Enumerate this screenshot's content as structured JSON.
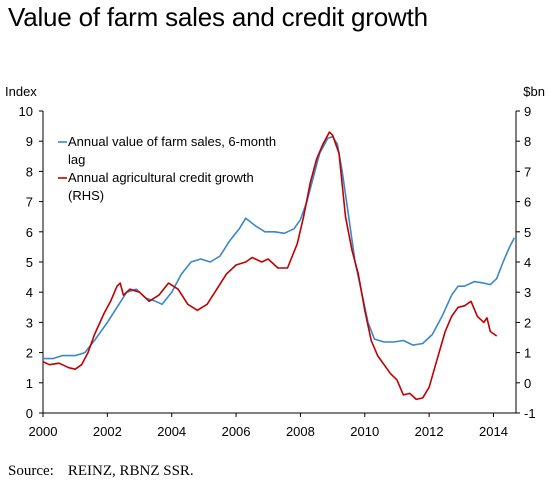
{
  "title": "Value of farm sales and credit growth",
  "source": {
    "label": "Source:",
    "text": "REINZ, RBNZ SSR."
  },
  "chart_data": {
    "type": "line",
    "title": "Value of farm sales and credit growth",
    "left_axis": {
      "unit_label": "Index",
      "ylim": [
        0,
        10
      ],
      "ticks": [
        "0",
        "1",
        "2",
        "3",
        "4",
        "5",
        "6",
        "7",
        "8",
        "9",
        "10"
      ]
    },
    "right_axis": {
      "unit_label": "$bn",
      "ylim": [
        -1,
        9
      ],
      "ticks": [
        "-1",
        "0",
        "1",
        "2",
        "3",
        "4",
        "5",
        "6",
        "7",
        "8",
        "9"
      ]
    },
    "x_axis": {
      "xlim": [
        2000,
        2014.7
      ],
      "ticks": [
        "2000",
        "2002",
        "2004",
        "2006",
        "2008",
        "2010",
        "2012",
        "2014"
      ]
    },
    "grid": false,
    "legend_placement": "top-left",
    "legend": [
      {
        "lines": [
          "Annual value of farm sales, 6-month",
          "lag"
        ],
        "color": "#3a87c9"
      },
      {
        "lines": [
          "Annual agricultural credit growth",
          "(RHS)"
        ],
        "color": "#c00000"
      }
    ],
    "series": [
      {
        "name": "Annual value of farm sales, 6-month lag",
        "axis": "left",
        "color": "#3a87c9",
        "points": [
          [
            2000.0,
            1.8
          ],
          [
            2000.3,
            1.8
          ],
          [
            2000.6,
            1.9
          ],
          [
            2001.0,
            1.9
          ],
          [
            2001.3,
            2.0
          ],
          [
            2001.6,
            2.4
          ],
          [
            2002.0,
            3.0
          ],
          [
            2002.3,
            3.5
          ],
          [
            2002.6,
            4.0
          ],
          [
            2002.9,
            4.1
          ],
          [
            2003.2,
            3.8
          ],
          [
            2003.5,
            3.7
          ],
          [
            2003.7,
            3.6
          ],
          [
            2004.0,
            4.0
          ],
          [
            2004.3,
            4.6
          ],
          [
            2004.6,
            5.0
          ],
          [
            2004.9,
            5.1
          ],
          [
            2005.2,
            5.0
          ],
          [
            2005.5,
            5.2
          ],
          [
            2005.8,
            5.7
          ],
          [
            2006.1,
            6.1
          ],
          [
            2006.3,
            6.45
          ],
          [
            2006.6,
            6.2
          ],
          [
            2006.9,
            6.0
          ],
          [
            2007.2,
            6.0
          ],
          [
            2007.5,
            5.95
          ],
          [
            2007.8,
            6.1
          ],
          [
            2008.0,
            6.4
          ],
          [
            2008.2,
            7.0
          ],
          [
            2008.4,
            7.8
          ],
          [
            2008.6,
            8.6
          ],
          [
            2008.85,
            9.1
          ],
          [
            2009.0,
            9.15
          ],
          [
            2009.15,
            8.9
          ],
          [
            2009.3,
            8.0
          ],
          [
            2009.5,
            6.5
          ],
          [
            2009.7,
            5.0
          ],
          [
            2009.9,
            4.0
          ],
          [
            2010.1,
            3.0
          ],
          [
            2010.3,
            2.45
          ],
          [
            2010.6,
            2.35
          ],
          [
            2010.9,
            2.35
          ],
          [
            2011.2,
            2.4
          ],
          [
            2011.5,
            2.25
          ],
          [
            2011.8,
            2.3
          ],
          [
            2012.1,
            2.6
          ],
          [
            2012.4,
            3.2
          ],
          [
            2012.7,
            3.9
          ],
          [
            2012.9,
            4.2
          ],
          [
            2013.1,
            4.2
          ],
          [
            2013.4,
            4.35
          ],
          [
            2013.7,
            4.3
          ],
          [
            2013.9,
            4.25
          ],
          [
            2014.1,
            4.45
          ],
          [
            2014.3,
            5.0
          ],
          [
            2014.5,
            5.5
          ],
          [
            2014.65,
            5.8
          ]
        ]
      },
      {
        "name": "Annual agricultural credit growth (RHS)",
        "axis": "right",
        "color": "#c00000",
        "points": [
          [
            2000.0,
            0.7
          ],
          [
            2000.2,
            0.6
          ],
          [
            2000.5,
            0.65
          ],
          [
            2000.8,
            0.5
          ],
          [
            2001.0,
            0.45
          ],
          [
            2001.2,
            0.6
          ],
          [
            2001.4,
            1.0
          ],
          [
            2001.6,
            1.6
          ],
          [
            2001.9,
            2.3
          ],
          [
            2002.1,
            2.7
          ],
          [
            2002.3,
            3.2
          ],
          [
            2002.4,
            3.3
          ],
          [
            2002.5,
            2.9
          ],
          [
            2002.7,
            3.1
          ],
          [
            2003.0,
            3.0
          ],
          [
            2003.3,
            2.7
          ],
          [
            2003.6,
            2.9
          ],
          [
            2003.9,
            3.3
          ],
          [
            2004.2,
            3.1
          ],
          [
            2004.5,
            2.6
          ],
          [
            2004.8,
            2.4
          ],
          [
            2005.1,
            2.6
          ],
          [
            2005.4,
            3.1
          ],
          [
            2005.7,
            3.6
          ],
          [
            2006.0,
            3.9
          ],
          [
            2006.3,
            4.0
          ],
          [
            2006.5,
            4.15
          ],
          [
            2006.8,
            4.0
          ],
          [
            2007.0,
            4.1
          ],
          [
            2007.3,
            3.8
          ],
          [
            2007.6,
            3.8
          ],
          [
            2007.9,
            4.6
          ],
          [
            2008.1,
            5.5
          ],
          [
            2008.3,
            6.6
          ],
          [
            2008.5,
            7.4
          ],
          [
            2008.7,
            7.9
          ],
          [
            2008.9,
            8.3
          ],
          [
            2009.0,
            8.2
          ],
          [
            2009.2,
            7.6
          ],
          [
            2009.4,
            5.5
          ],
          [
            2009.6,
            4.4
          ],
          [
            2009.8,
            3.6
          ],
          [
            2010.0,
            2.4
          ],
          [
            2010.2,
            1.4
          ],
          [
            2010.4,
            0.9
          ],
          [
            2010.6,
            0.6
          ],
          [
            2010.8,
            0.3
          ],
          [
            2011.0,
            0.1
          ],
          [
            2011.2,
            -0.4
          ],
          [
            2011.4,
            -0.35
          ],
          [
            2011.6,
            -0.55
          ],
          [
            2011.8,
            -0.5
          ],
          [
            2012.0,
            -0.15
          ],
          [
            2012.2,
            0.6
          ],
          [
            2012.5,
            1.7
          ],
          [
            2012.7,
            2.2
          ],
          [
            2012.9,
            2.5
          ],
          [
            2013.1,
            2.55
          ],
          [
            2013.3,
            2.7
          ],
          [
            2013.5,
            2.2
          ],
          [
            2013.7,
            2.0
          ],
          [
            2013.8,
            2.15
          ],
          [
            2013.9,
            1.7
          ],
          [
            2014.1,
            1.55
          ]
        ]
      }
    ]
  }
}
